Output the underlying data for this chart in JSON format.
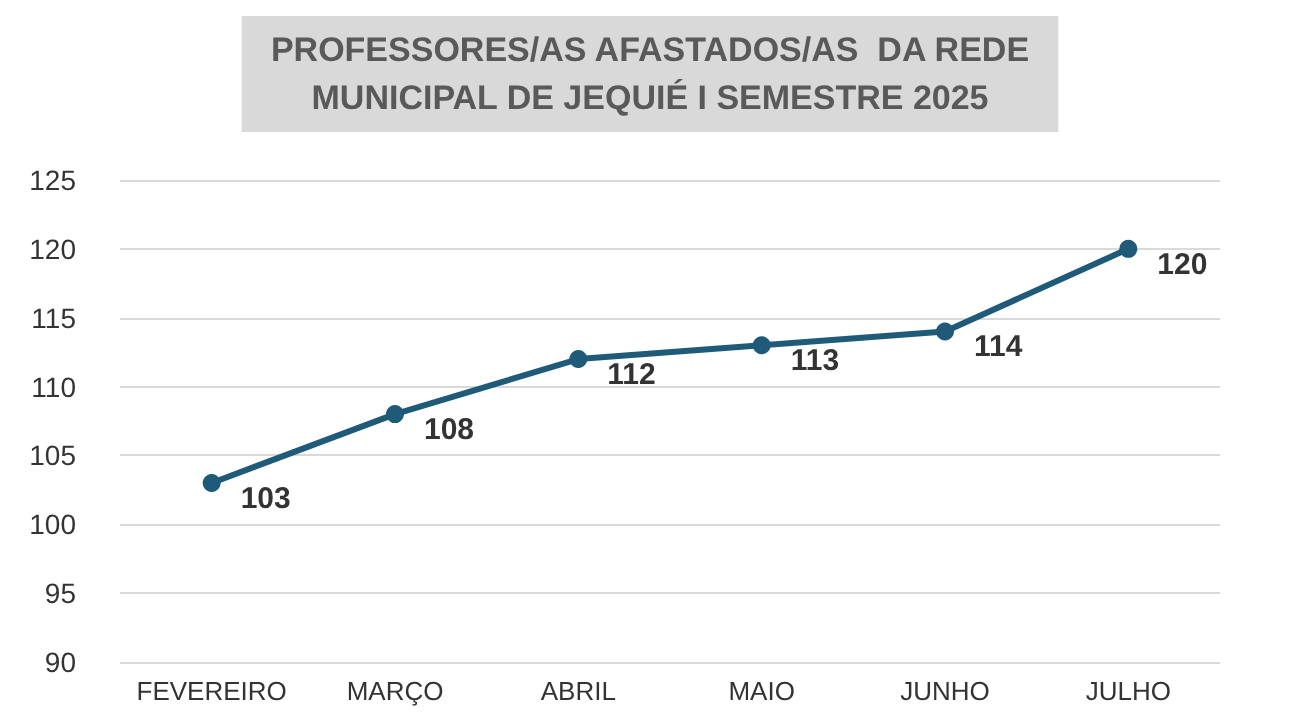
{
  "chart_data": {
    "type": "line",
    "title": "PROFESSORES/AS AFASTADOS/AS  DA REDE\nMUNICIPAL DE JEQUIÉ I SEMESTRE 2025",
    "categories": [
      "FEVEREIRO",
      "MARÇO",
      "ABRIL",
      "MAIO",
      "JUNHO",
      "JULHO"
    ],
    "series": [
      {
        "color": "#1f5a78",
        "values": [
          103,
          108,
          112,
          113,
          114,
          120
        ]
      }
    ],
    "ylim": [
      90,
      125
    ],
    "yticks": [
      90,
      95,
      100,
      105,
      110,
      115,
      120,
      125
    ],
    "grid": "y",
    "data_labels": true,
    "marker": "circle",
    "line_style": "solid"
  }
}
